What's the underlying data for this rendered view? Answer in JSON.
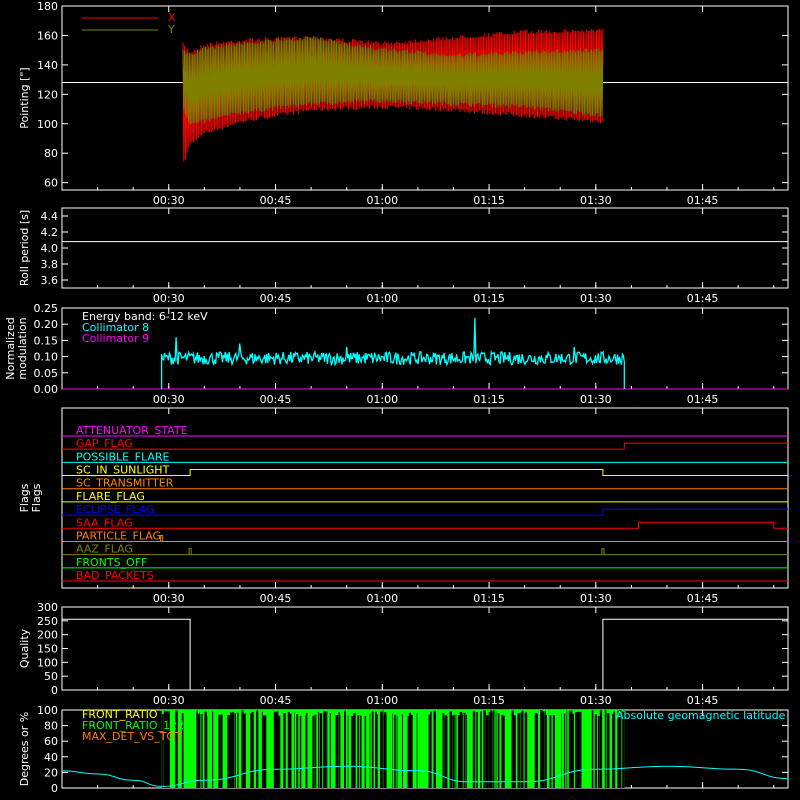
{
  "colors": {
    "background": "#000000",
    "axes": "#ffffff",
    "x_pointing": "#ff0000",
    "y_pointing": "#808000",
    "roll": "#ffffff",
    "collimator8": "#00ffff",
    "collimator9": "#ff00ff",
    "quality": "#ffffff",
    "front_ratio": "#00ff00",
    "geomagnetic": "#00ffff"
  },
  "time_ticks": [
    "00:30",
    "00:45",
    "01:00",
    "01:15",
    "01:30",
    "01:45"
  ],
  "chart_data": [
    {
      "type": "line",
      "ylabel": "Pointing [\"]",
      "ylim": [
        55,
        180
      ],
      "yticks": [
        60,
        80,
        100,
        120,
        140,
        160,
        180
      ],
      "xlim": [
        "00:15",
        "01:57"
      ],
      "legend": [
        {
          "label": "X",
          "color": "#ff0000"
        },
        {
          "label": "Y",
          "color": "#808000"
        }
      ],
      "reference_line": 128,
      "series": [
        {
          "name": "X",
          "x": [
            "00:32",
            "00:33",
            "00:35",
            "00:40",
            "00:50",
            "01:00",
            "01:10",
            "01:20",
            "01:31"
          ],
          "min": [
            70,
            85,
            92,
            100,
            108,
            110,
            108,
            104,
            100
          ],
          "max": [
            155,
            150,
            155,
            158,
            160,
            156,
            160,
            164,
            165
          ]
        },
        {
          "name": "Y",
          "x": [
            "00:32",
            "00:33",
            "00:35",
            "00:40",
            "00:50",
            "01:00",
            "01:10",
            "01:20",
            "01:31"
          ],
          "min": [
            110,
            98,
            100,
            106,
            112,
            114,
            112,
            110,
            104
          ],
          "max": [
            152,
            148,
            153,
            156,
            160,
            152,
            148,
            150,
            152
          ]
        }
      ]
    },
    {
      "type": "line",
      "ylabel": "Roll period [s]",
      "ylim": [
        3.5,
        4.5
      ],
      "yticks": [
        3.6,
        3.8,
        4.0,
        4.2,
        4.4
      ],
      "xlim": [
        "00:15",
        "01:57"
      ],
      "series": [
        {
          "name": "",
          "x": [
            "00:15",
            "01:57"
          ],
          "values": [
            4.08,
            4.08
          ]
        }
      ]
    },
    {
      "type": "line",
      "ylabel": "Normalized modulation",
      "ylim": [
        0,
        0.25
      ],
      "yticks": [
        0.0,
        0.05,
        0.1,
        0.15,
        0.2,
        0.25
      ],
      "xlim": [
        "00:15",
        "01:57"
      ],
      "legend": [
        {
          "label": "Energy band: 6-12 keV",
          "color": "#ffffff"
        },
        {
          "label": "Collimator 8",
          "color": "#00ffff"
        },
        {
          "label": "Collimator 9",
          "color": "#ff00ff"
        }
      ],
      "series": [
        {
          "name": "Collimator 8",
          "x": [
            "00:29",
            "01:34"
          ],
          "typical": 0.095,
          "spread": 0.02,
          "spikes": [
            {
              "t": "00:31",
              "v": 0.16
            },
            {
              "t": "00:40",
              "v": 0.14
            },
            {
              "t": "00:55",
              "v": 0.13
            },
            {
              "t": "01:13",
              "v": 0.22
            },
            {
              "t": "01:27",
              "v": 0.13
            }
          ]
        },
        {
          "name": "Collimator 9",
          "x": [
            "00:15",
            "01:57"
          ],
          "values": [
            0,
            0
          ]
        }
      ]
    },
    {
      "type": "line",
      "ylabel": "Flags",
      "xlim": [
        "00:15",
        "01:57"
      ],
      "flags": [
        {
          "label": "ATTENUATOR_STATE",
          "color": "#ff00ff",
          "steps": []
        },
        {
          "label": "GAP_FLAG",
          "color": "#ff0000",
          "steps": [
            [
              "01:34",
              1
            ]
          ]
        },
        {
          "label": "POSSIBLE_FLARE",
          "color": "#00ffff",
          "steps": []
        },
        {
          "label": "SC_IN_SUNLIGHT",
          "color": "#ffff00",
          "steps": [
            [
              "00:33",
              1
            ],
            [
              "01:31",
              0
            ]
          ]
        },
        {
          "label": "SC_TRANSMITTER",
          "color": "#ff8000",
          "steps": []
        },
        {
          "label": "FLARE_FLAG",
          "color": "#ffff00",
          "steps": []
        },
        {
          "label": "ECLIPSE_FLAG",
          "color": "#0000ff",
          "steps": [
            [
              "00:33",
              0
            ],
            [
              "01:31",
              1
            ]
          ]
        },
        {
          "label": "SAA_FLAG",
          "color": "#ff0000",
          "steps": [
            [
              "01:36",
              1
            ],
            [
              "01:55",
              0
            ]
          ]
        },
        {
          "label": "PARTICLE_FLAG",
          "color": "#ff8000",
          "steps": [],
          "pulses": [
            "00:29"
          ]
        },
        {
          "label": "AAZ_FLAG",
          "color": "#808000",
          "steps": [],
          "pulses": [
            "00:33",
            "01:31"
          ]
        },
        {
          "label": "FRONTS_OFF",
          "color": "#00ff00",
          "steps": []
        },
        {
          "label": "BAD_PACKETS",
          "color": "#ff0000",
          "steps": []
        }
      ]
    },
    {
      "type": "line",
      "ylabel": "Quality",
      "ylim": [
        0,
        300
      ],
      "yticks": [
        0,
        50,
        100,
        150,
        200,
        250,
        300
      ],
      "xlim": [
        "00:15",
        "01:57"
      ],
      "series": [
        {
          "name": "",
          "x": [
            "00:15",
            "00:33",
            "00:33",
            "01:31",
            "01:31",
            "01:57"
          ],
          "values": [
            256,
            256,
            0,
            0,
            256,
            256
          ]
        }
      ]
    },
    {
      "type": "line",
      "ylabel": "Degrees or %",
      "ylim": [
        0,
        100
      ],
      "yticks": [
        0,
        20,
        40,
        60,
        80,
        100
      ],
      "xlim": [
        "00:15",
        "01:57"
      ],
      "legend": [
        {
          "label": "FRONT_RATIO",
          "color": "#ffff00"
        },
        {
          "label": "FRONT_RATIO_1225",
          "color": "#00ff00"
        },
        {
          "label": "MAX_DET_VS_TOT",
          "color": "#ff8000"
        },
        {
          "label": "Absolute geomagnetic latitude",
          "color": "#00ffff"
        }
      ],
      "series": [
        {
          "name": "FRONT_RATIO_1225",
          "x": [
            "00:29",
            "01:34"
          ],
          "band": [
            0,
            100
          ]
        },
        {
          "name": "Absolute geomagnetic latitude",
          "x": [
            "00:15",
            "00:20",
            "00:25",
            "00:29",
            "00:35",
            "00:45",
            "00:55",
            "01:05",
            "01:12",
            "01:20",
            "01:30",
            "01:40",
            "01:50",
            "01:57"
          ],
          "values": [
            22,
            18,
            10,
            2,
            10,
            24,
            28,
            22,
            8,
            8,
            24,
            28,
            24,
            12
          ]
        }
      ]
    }
  ]
}
